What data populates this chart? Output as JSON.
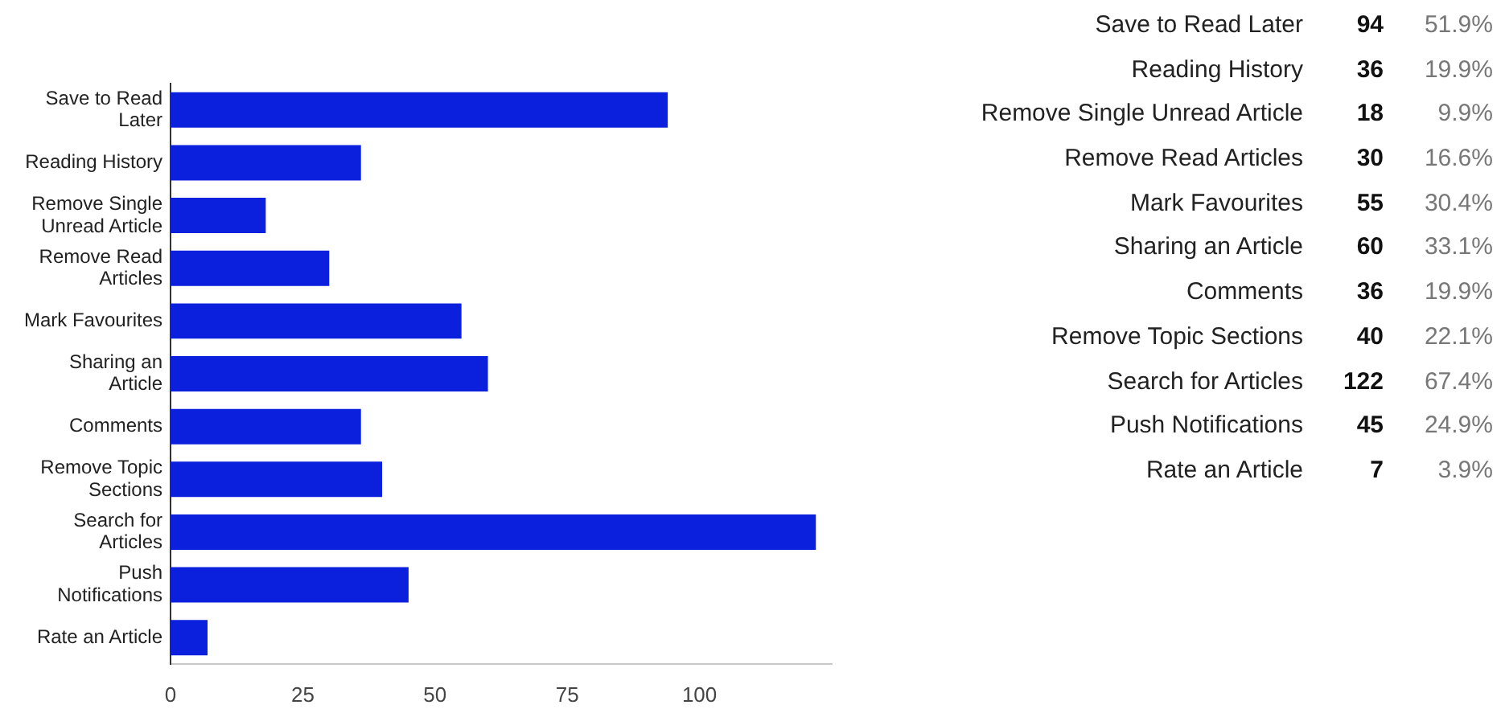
{
  "chart_data": [
    {
      "type": "bar",
      "orientation": "horizontal",
      "categories": [
        "Save to Read Later",
        "Reading History",
        "Remove Single Unread Article",
        "Remove Read Articles",
        "Mark Favourites",
        "Sharing an Article",
        "Comments",
        "Remove Topic Sections",
        "Search for Articles",
        "Push Notifications",
        "Rate an Article"
      ],
      "values": [
        94,
        36,
        18,
        30,
        55,
        60,
        36,
        40,
        122,
        45,
        7
      ],
      "color": "#0b20dd",
      "xlim": [
        0,
        125
      ],
      "xticks": [
        0,
        25,
        50,
        75,
        100
      ],
      "grid": false,
      "legend": false
    },
    {
      "type": "other",
      "categories": [
        "Save to Read Later",
        "Reading History",
        "Remove Single Unread Article",
        "Remove Read Articles",
        "Mark Favourites",
        "Sharing an Article",
        "Comments",
        "Remove Topic Sections",
        "Search for Articles",
        "Push Notifications",
        "Rate an Article"
      ],
      "values": [
        94,
        36,
        18,
        30,
        55,
        60,
        36,
        40,
        122,
        45,
        7
      ],
      "data_labels": true,
      "annotations": [
        "51.9%",
        "19.9%",
        "9.9%",
        "16.6%",
        "30.4%",
        "33.1%",
        "19.9%",
        "22.1%",
        "67.4%",
        "24.9%",
        "3.9%"
      ]
    }
  ]
}
